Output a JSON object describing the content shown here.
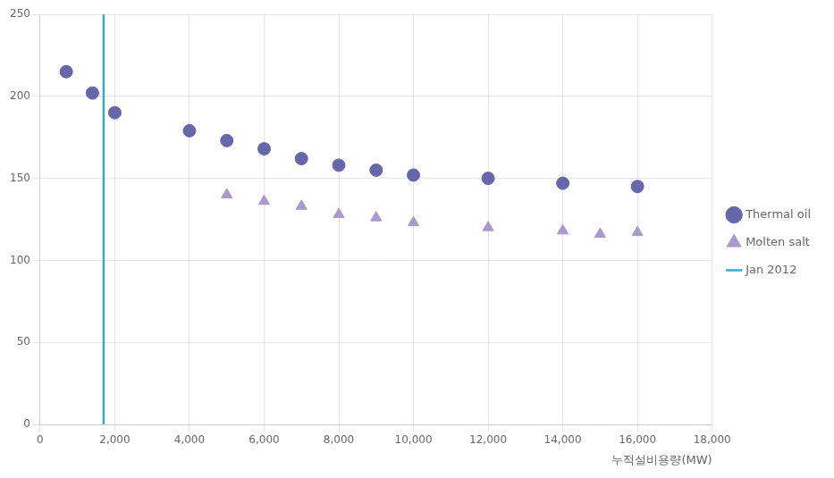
{
  "chart_data": {
    "type": "scatter",
    "xlabel": "누적설비용량(MW)",
    "series": [
      {
        "name": "Thermal oil",
        "color": "#6666aa",
        "marker": "circle",
        "x": [
          700,
          1400,
          2000,
          4000,
          5000,
          6000,
          7000,
          8000,
          9000,
          10000,
          12000,
          14000,
          16000
        ],
        "values": [
          215,
          202,
          190,
          179,
          173,
          168,
          162,
          158,
          155,
          152,
          150,
          147,
          145
        ]
      },
      {
        "name": "Molten salt",
        "color": "#aa99cc",
        "marker": "triangle",
        "x": [
          5000,
          6000,
          7000,
          8000,
          9000,
          10000,
          12000,
          14000,
          15000,
          16000
        ],
        "values": [
          140,
          136,
          133,
          128,
          126,
          123,
          120,
          118,
          116,
          117
        ]
      },
      {
        "name": "Jan 2012",
        "type": "vline",
        "color": "#3aa8cc",
        "line_style": "solid",
        "x": [
          1700
        ]
      }
    ],
    "xlim": [
      0,
      18000
    ],
    "ylim": [
      0,
      250
    ],
    "xticks": [
      0,
      {
        "value": 2000,
        "label": "2,000"
      },
      {
        "value": 4000,
        "label": "4,000"
      },
      {
        "value": 6000,
        "label": "6,000"
      },
      {
        "value": 8000,
        "label": "8,000"
      },
      {
        "value": 10000,
        "label": "10,000"
      },
      {
        "value": 12000,
        "label": "12,000"
      },
      {
        "value": 14000,
        "label": "14,000"
      },
      {
        "value": 16000,
        "label": "16,000"
      },
      {
        "value": 18000,
        "label": "18,000"
      }
    ],
    "yticks": [
      0,
      50,
      100,
      150,
      200,
      250
    ],
    "grid": true,
    "legend": "right"
  }
}
